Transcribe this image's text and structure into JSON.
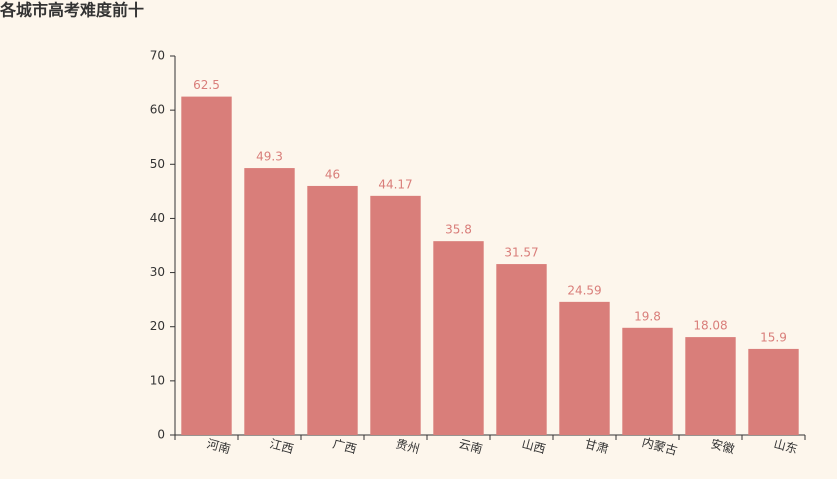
{
  "chart_data": {
    "type": "bar",
    "title": "各城市高考难度前十",
    "categories": [
      "河南",
      "江西",
      "广西",
      "贵州",
      "云南",
      "山西",
      "甘肃",
      "内蒙古",
      "安徽",
      "山东"
    ],
    "values": [
      62.5,
      49.3,
      46,
      44.17,
      35.8,
      31.57,
      24.59,
      19.8,
      18.08,
      15.9
    ],
    "color": "#d97e7a",
    "ylim": [
      0,
      70
    ],
    "yticks": [
      0,
      10,
      20,
      30,
      40,
      50,
      60,
      70
    ],
    "grid": false
  }
}
